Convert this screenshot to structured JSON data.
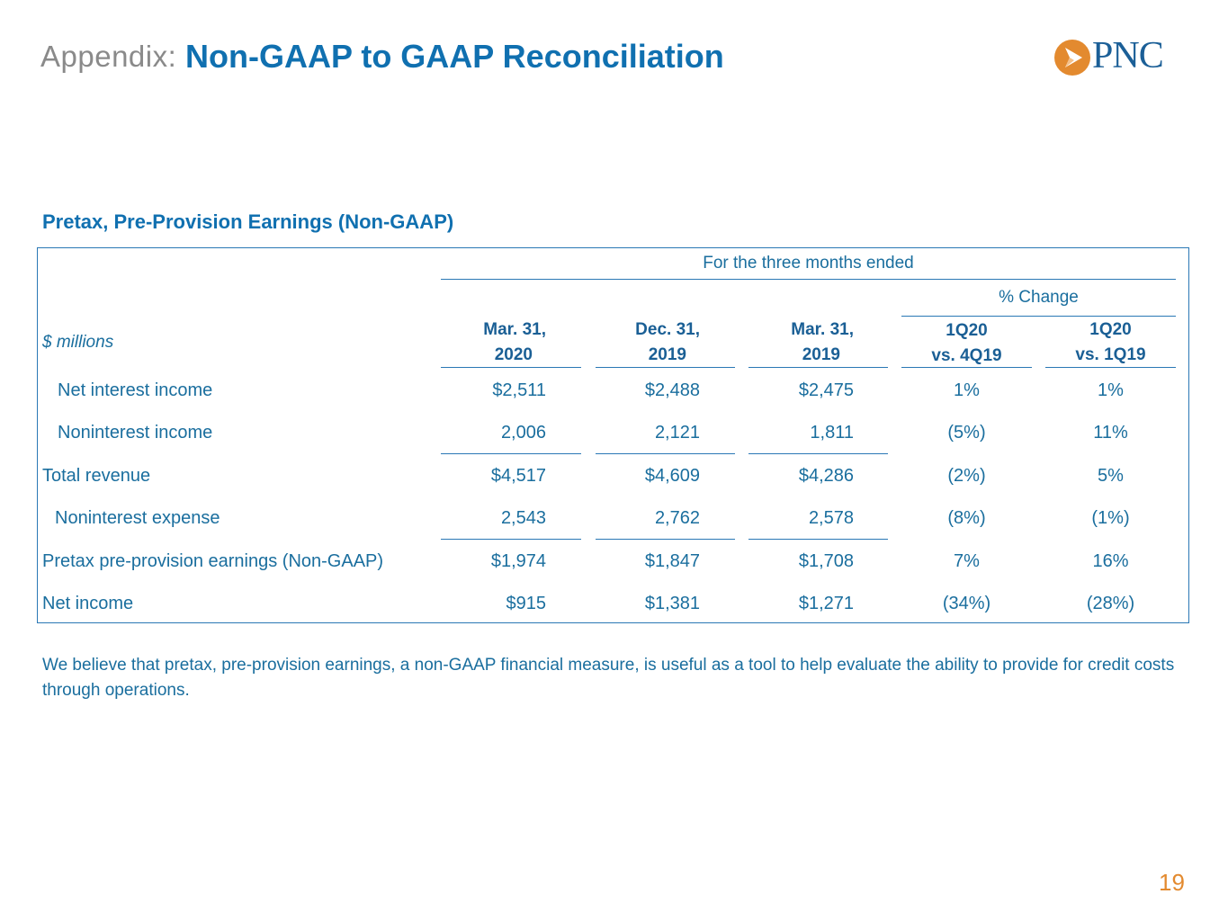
{
  "header": {
    "prefix": "Appendix:",
    "title": "Non-GAAP to GAAP Reconciliation",
    "logo_text": "PNC"
  },
  "section": {
    "title": "Pretax, Pre-Provision Earnings  (Non-GAAP)"
  },
  "table": {
    "period_header": "For the three months ended",
    "change_header": "% Change",
    "units_label": "$ millions",
    "columns": [
      {
        "line1": "Mar. 31,",
        "line2": "2020"
      },
      {
        "line1": "Dec. 31,",
        "line2": "2019"
      },
      {
        "line1": "Mar. 31,",
        "line2": "2019"
      },
      {
        "line1": "1Q20",
        "line2": "vs. 4Q19"
      },
      {
        "line1": "1Q20",
        "line2": "vs. 1Q19"
      }
    ],
    "rows": [
      {
        "label": "Net interest income",
        "indent": true,
        "values": [
          "$2,511",
          "$2,488",
          "$2,475",
          "1%",
          "1%"
        ]
      },
      {
        "label": "Noninterest income",
        "indent": true,
        "values": [
          "2,006",
          "2,121",
          "1,811",
          "(5%)",
          "11%"
        ]
      },
      {
        "label": "Total revenue",
        "indent": false,
        "values": [
          "$4,517",
          "$4,609",
          "$4,286",
          "(2%)",
          "5%"
        ]
      },
      {
        "label": "Noninterest expense",
        "indent": true,
        "values": [
          "2,543",
          "2,762",
          "2,578",
          "(8%)",
          "(1%)"
        ]
      },
      {
        "label": "Pretax pre-provision earnings (Non-GAAP)",
        "indent": false,
        "values": [
          "$1,974",
          "$1,847",
          "$1,708",
          "7%",
          "16%"
        ]
      },
      {
        "label": "Net income",
        "indent": false,
        "values": [
          "$915",
          "$1,381",
          "$1,271",
          "(34%)",
          "(28%)"
        ]
      }
    ]
  },
  "footnote": "We believe that pretax, pre-provision earnings, a non-GAAP financial measure, is useful as a tool to help evaluate the ability to provide for credit costs through operations.",
  "page_number": "19",
  "colors": {
    "brand_blue": "#1070b0",
    "brand_orange": "#e38a2f",
    "rule_blue": "#2a78b5"
  }
}
